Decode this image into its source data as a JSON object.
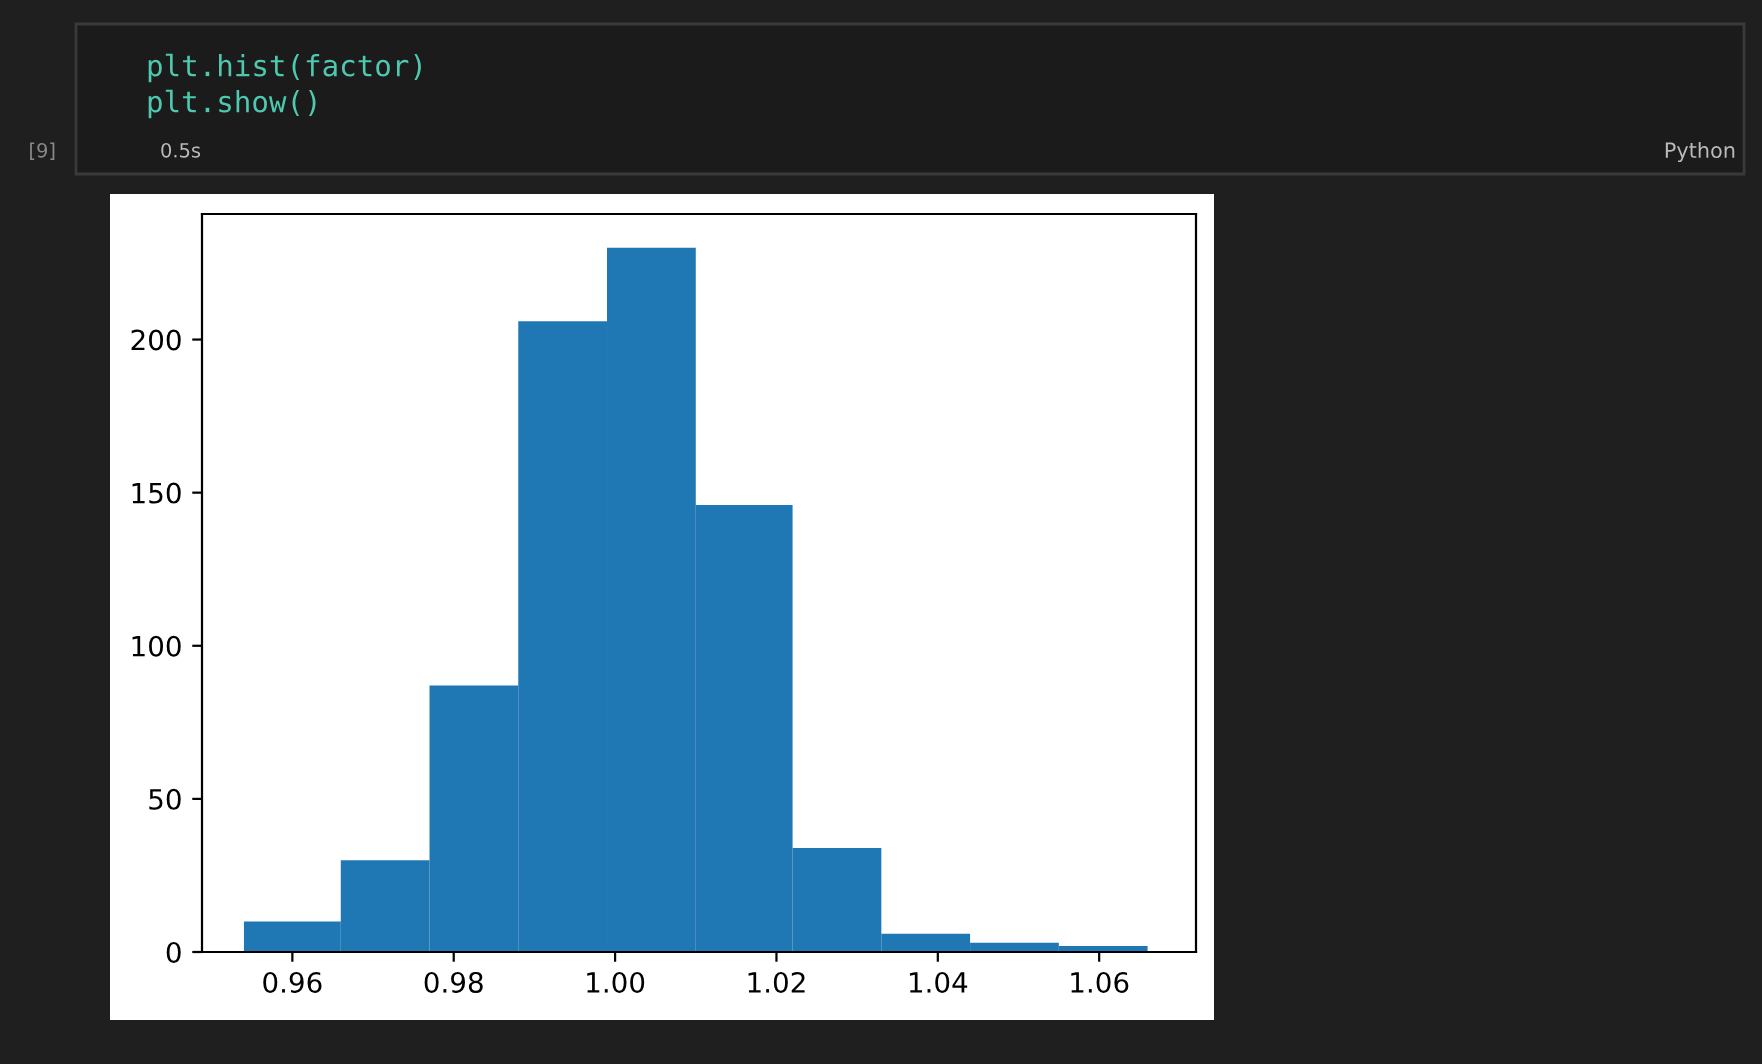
{
  "chart_data": {
    "type": "histogram",
    "bins": [
      0.954,
      0.966,
      0.977,
      0.988,
      0.999,
      1.01,
      1.022,
      1.033,
      1.044,
      1.055,
      1.066
    ],
    "values": [
      10,
      30,
      87,
      206,
      230,
      146,
      34,
      6,
      3,
      2
    ],
    "color": "#1f77b4",
    "xlim": [
      0.9488,
      1.072
    ],
    "xticks": [
      {
        "value": 0.96,
        "label": "0.96"
      },
      {
        "value": 0.98,
        "label": "0.98"
      },
      {
        "value": 1.0,
        "label": "1.00"
      },
      {
        "value": 1.02,
        "label": "1.02"
      },
      {
        "value": 1.04,
        "label": "1.04"
      },
      {
        "value": 1.06,
        "label": "1.06"
      }
    ],
    "ylim": [
      0,
      241
    ],
    "yticks": [
      0,
      50,
      100,
      150,
      200
    ],
    "grid": false,
    "legend": false,
    "annotations": [
      "plt.hist(factor)",
      "plt.show()",
      "[9]",
      "0.5s",
      "Python"
    ]
  }
}
